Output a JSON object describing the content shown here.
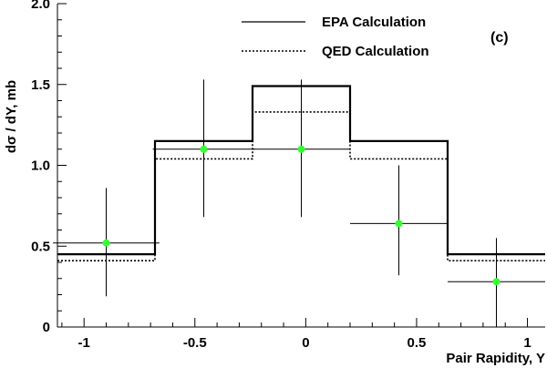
{
  "chart_data": {
    "type": "histogram-with-points",
    "panel_label": "(c)",
    "xlabel": "Pair Rapidity, Y",
    "ylabel": "dσ / dY, mb",
    "xlim": [
      -1.12,
      1.08
    ],
    "ylim": [
      0,
      2.0
    ],
    "x_ticks": [
      {
        "value": -1,
        "label": "-1"
      },
      {
        "value": -0.5,
        "label": "-0.5"
      },
      {
        "value": 0,
        "label": "0"
      },
      {
        "value": 0.5,
        "label": "0.5"
      },
      {
        "value": 1,
        "label": "1"
      }
    ],
    "y_ticks": [
      {
        "value": 0,
        "label": "0"
      },
      {
        "value": 0.5,
        "label": "0.5"
      },
      {
        "value": 1.0,
        "label": "1.0"
      },
      {
        "value": 1.5,
        "label": "1.5"
      },
      {
        "value": 2.0,
        "label": "2.0"
      }
    ],
    "series": [
      {
        "name": "EPA Calculation",
        "style": "solid",
        "color": "#000000",
        "bin_edges": [
          -1.12,
          -0.68,
          -0.24,
          0.2,
          0.64,
          1.08
        ],
        "values": [
          0.45,
          1.15,
          1.49,
          1.15,
          0.45
        ]
      },
      {
        "name": "QED Calculation",
        "style": "dotted",
        "color": "#000000",
        "bin_edges": [
          -1.12,
          -0.68,
          -0.24,
          0.2,
          0.64,
          1.08
        ],
        "values": [
          0.41,
          1.04,
          1.33,
          1.04,
          0.41
        ]
      }
    ],
    "data_points": {
      "color": "#33ff33",
      "points": [
        {
          "x": -0.9,
          "y": 0.52,
          "xerr": 0.24,
          "ylow": 0.19,
          "yhigh": 0.86
        },
        {
          "x": -0.46,
          "y": 1.1,
          "xerr": 0.23,
          "ylow": 0.68,
          "yhigh": 1.53
        },
        {
          "x": -0.02,
          "y": 1.1,
          "xerr": 0.22,
          "ylow": 0.68,
          "yhigh": 1.53
        },
        {
          "x": 0.42,
          "y": 0.64,
          "xerr": 0.22,
          "ylow": 0.32,
          "yhigh": 1.0
        },
        {
          "x": 0.86,
          "y": 0.28,
          "xerr": 0.22,
          "ylow": 0.0,
          "yhigh": 0.55
        }
      ]
    },
    "grid": false,
    "legend_position": "top-center"
  }
}
